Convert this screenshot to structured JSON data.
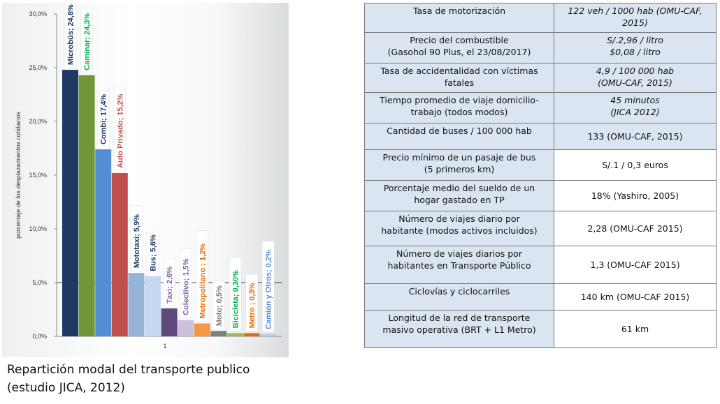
{
  "chart_data": {
    "type": "bar",
    "x_category": "1",
    "ylabel": "porcentaje de los desplazamientos cotidianos",
    "ylim": [
      0,
      30
    ],
    "y_ticks": [
      "0,0%",
      "5,0%",
      "10,0%",
      "15,0%",
      "20,0%",
      "25,0%",
      "30,0%"
    ],
    "grid": false,
    "series": [
      {
        "label": "Microbús; 24,8%",
        "value": 24.8,
        "color": "#1f3864"
      },
      {
        "label": "Caminar; 24,3%",
        "value": 24.3,
        "color": "#70963a"
      },
      {
        "label": "Combi; 17,4%",
        "value": 17.4,
        "color": "#558ed5"
      },
      {
        "label": "Auto Privado; 15,2%",
        "value": 15.2,
        "color": "#c0504d"
      },
      {
        "label": "Mototaxi; 5,9%",
        "value": 5.9,
        "color": "#95b3d7"
      },
      {
        "label": "Bus; 5,6%",
        "value": 5.6,
        "color": "#c6d9f1"
      },
      {
        "label": "Taxi; 2,6%",
        "value": 2.6,
        "color": "#604a7b"
      },
      {
        "label": "Colectivo; 1,5%",
        "value": 1.5,
        "color": "#ccc1da"
      },
      {
        "label": "Metropolitano ; 1,2%",
        "value": 1.2,
        "color": "#f79646"
      },
      {
        "label": "Moto; 0,5%",
        "value": 0.5,
        "color": "#7f7f7f"
      },
      {
        "label": "Bicicleta; 0,30%",
        "value": 0.3,
        "color": "#9bbb59"
      },
      {
        "label": "Metro ; 0,3%",
        "value": 0.3,
        "color": "#e46c0a"
      },
      {
        "label": "Camión y Otros; 0,2%",
        "value": 0.2,
        "color": "#b9cde5"
      }
    ],
    "label_colors": [
      "#1f3864",
      "#00b050",
      "#1f3864",
      "#c0504d",
      "#1f3864",
      "#1f3864",
      "#8064a2",
      "#8064a2",
      "#e46c0a",
      "#7f7f7f",
      "#00b050",
      "#e46c0a",
      "#558ed5"
    ]
  },
  "caption": {
    "line1": "Repartición modal del transporte publico",
    "line2": "(estudio JICA, 2012)"
  },
  "table": {
    "rows": [
      {
        "label": [
          "Tasa de motorización"
        ],
        "value": [
          "122 veh / 1000 hab (OMU-CAF,",
          "2015)"
        ],
        "style": "italic"
      },
      {
        "label": [
          "Precio del combustible",
          "(Gasohol 90 Plus, el 23/08/2017)"
        ],
        "value": [
          "S/.2,96 / litro",
          "$0,08 / litro"
        ],
        "style": "italic"
      },
      {
        "label": [
          "Tasa de accidentalidad con víctimas",
          "fatales"
        ],
        "value": [
          "4,9 / 100 000 hab",
          "(OMU-CAF, 2015)"
        ],
        "style": "italic"
      },
      {
        "label": [
          "Tiempo promedio de viaje domicilio-",
          "trabajo (todos modos)"
        ],
        "value": [
          "45 minutos",
          "(JICA 2012)"
        ],
        "style": "italic"
      },
      {
        "label": [
          "Cantidad de buses / 100 000 hab"
        ],
        "value": [
          "133 (OMU-CAF, 2015)"
        ],
        "style": "blue"
      },
      {
        "label": [
          "Precio mínimo de un pasaje de bus",
          "(5 primeros km)"
        ],
        "value": [
          "S/.1 / 0,3 euros"
        ],
        "style": "plain"
      },
      {
        "label": [
          "Porcentaje medio del sueldo de un",
          "hogar gastado en TP"
        ],
        "value": [
          "18% (Yashiro, 2005)"
        ],
        "style": "plain"
      },
      {
        "label": [
          "Número de viajes diario por",
          "habitante (modos activos incluidos)"
        ],
        "value": [
          "2,28 (OMU-CAF 2015)"
        ],
        "style": "plain"
      },
      {
        "label": [
          "Número de viajes diarios por",
          "habitantes en Transporte Público"
        ],
        "value": [
          "1,3 (OMU-CAF 2015)"
        ],
        "style": "plain"
      },
      {
        "label": [
          "Ciclovías y ciclocarriles"
        ],
        "value": [
          "140 km (OMU-CAF 2015)"
        ],
        "style": "plain"
      },
      {
        "label": [
          "Longitud de la red de transporte",
          "masivo operativa (BRT + L1 Metro)"
        ],
        "value": [
          "61 km"
        ],
        "style": "plain"
      }
    ]
  }
}
